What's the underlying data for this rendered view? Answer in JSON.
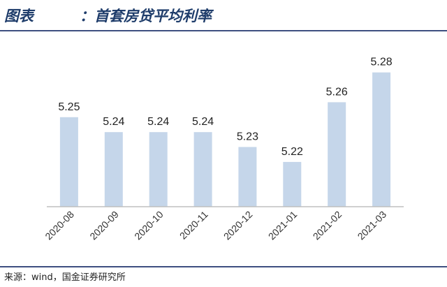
{
  "header": {
    "prefix": "图表",
    "title": "：首套房贷平均利率"
  },
  "footer": {
    "source": "来源：wind，国金证券研究所"
  },
  "colors": {
    "bar": "#c5d6ea",
    "axis": "#bfbfbf",
    "rule": "#3d4f80"
  },
  "chart_data": {
    "type": "bar",
    "title": "：首套房贷平均利率",
    "categories": [
      "2020-08",
      "2020-09",
      "2020-10",
      "2020-11",
      "2020-12",
      "2021-01",
      "2021-02",
      "2021-03"
    ],
    "values": [
      5.25,
      5.24,
      5.24,
      5.24,
      5.23,
      5.22,
      5.26,
      5.28
    ],
    "data_labels": [
      "5.25",
      "5.24",
      "5.24",
      "5.24",
      "5.23",
      "5.22",
      "5.26",
      "5.28"
    ],
    "ylim": [
      5.19,
      5.285
    ],
    "xlabel": "",
    "ylabel": "",
    "grid": false,
    "legend": "none"
  }
}
